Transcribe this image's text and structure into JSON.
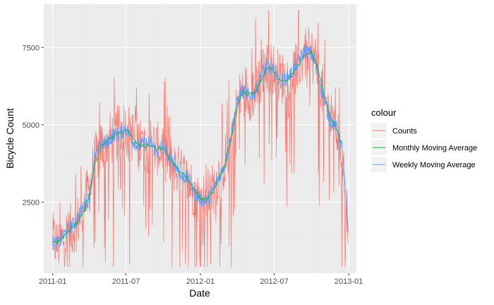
{
  "chart_data": {
    "type": "line",
    "xlabel": "Date",
    "ylabel": "Bicycle Count",
    "x_range": [
      "2010-12-10",
      "2013-01-20"
    ],
    "y_range": [
      200,
      8900
    ],
    "x_ticks": [
      {
        "label": "2011-01",
        "value": "2011-01-01"
      },
      {
        "label": "2011-07",
        "value": "2011-07-01"
      },
      {
        "label": "2012-01",
        "value": "2012-01-01"
      },
      {
        "label": "2012-07",
        "value": "2012-07-01"
      },
      {
        "label": "2013-01",
        "value": "2013-01-01"
      }
    ],
    "y_ticks": [
      2500,
      5000,
      7500
    ],
    "grid": true,
    "legend": {
      "title": "colour",
      "placement": "right",
      "entries": [
        {
          "label": "Counts",
          "color": "#F8766D"
        },
        {
          "label": "Monthly Moving Average",
          "color": "#00BA38"
        },
        {
          "label": "Weekly Moving Average",
          "color": "#619CFF"
        }
      ]
    },
    "series": [
      {
        "name": "Counts",
        "color": "#F8766D",
        "note_x": "semi-monthly samples of the daily count trend (envelope of daily values)",
        "x": [
          "2011-01-01",
          "2011-01-15",
          "2011-02-01",
          "2011-02-15",
          "2011-03-01",
          "2011-03-15",
          "2011-04-01",
          "2011-04-15",
          "2011-05-01",
          "2011-05-15",
          "2011-06-01",
          "2011-06-15",
          "2011-07-01",
          "2011-07-15",
          "2011-08-01",
          "2011-08-15",
          "2011-09-01",
          "2011-09-15",
          "2011-10-01",
          "2011-10-15",
          "2011-11-01",
          "2011-11-15",
          "2011-12-01",
          "2011-12-15",
          "2012-01-01",
          "2012-01-15",
          "2012-02-01",
          "2012-02-15",
          "2012-03-01",
          "2012-03-15",
          "2012-04-01",
          "2012-04-15",
          "2012-05-01",
          "2012-05-15",
          "2012-06-01",
          "2012-06-15",
          "2012-07-01",
          "2012-07-15",
          "2012-08-01",
          "2012-08-15",
          "2012-09-01",
          "2012-09-15",
          "2012-10-01",
          "2012-10-15",
          "2012-11-01",
          "2012-11-15",
          "2012-12-01",
          "2012-12-15",
          "2012-12-31"
        ],
        "y": [
          1300,
          1100,
          1400,
          1600,
          1800,
          2200,
          2900,
          3800,
          4300,
          4500,
          4600,
          4800,
          4900,
          4700,
          4400,
          4300,
          4400,
          4200,
          4300,
          3900,
          3600,
          3400,
          3200,
          2900,
          2500,
          2700,
          2900,
          3400,
          3800,
          4500,
          5600,
          6200,
          6000,
          6100,
          6600,
          6900,
          6800,
          6500,
          6500,
          6700,
          7000,
          7300,
          7300,
          6900,
          5900,
          5300,
          4900,
          4200,
          1800
        ]
      },
      {
        "name": "Monthly Moving Average",
        "color": "#00BA38",
        "x": [
          "2011-01-01",
          "2011-01-15",
          "2011-02-01",
          "2011-02-15",
          "2011-03-01",
          "2011-03-15",
          "2011-04-01",
          "2011-04-15",
          "2011-05-01",
          "2011-05-15",
          "2011-06-01",
          "2011-06-15",
          "2011-07-01",
          "2011-07-15",
          "2011-08-01",
          "2011-08-15",
          "2011-09-01",
          "2011-09-15",
          "2011-10-01",
          "2011-10-15",
          "2011-11-01",
          "2011-11-15",
          "2011-12-01",
          "2011-12-15",
          "2012-01-01",
          "2012-01-15",
          "2012-02-01",
          "2012-02-15",
          "2012-03-01",
          "2012-03-15",
          "2012-04-01",
          "2012-04-15",
          "2012-05-01",
          "2012-05-15",
          "2012-06-01",
          "2012-06-15",
          "2012-07-01",
          "2012-07-15",
          "2012-08-01",
          "2012-08-15",
          "2012-09-01",
          "2012-09-15",
          "2012-10-01",
          "2012-10-15",
          "2012-11-01",
          "2012-11-15",
          "2012-12-01",
          "2012-12-15"
        ],
        "y": [
          1250,
          1200,
          1450,
          1650,
          1800,
          2100,
          2700,
          3700,
          4300,
          4500,
          4600,
          4750,
          4850,
          4600,
          4350,
          4300,
          4350,
          4200,
          4250,
          3950,
          3650,
          3450,
          3250,
          2900,
          2600,
          2600,
          2800,
          3200,
          3700,
          4400,
          5600,
          6050,
          6000,
          6050,
          6500,
          6850,
          6750,
          6450,
          6450,
          6650,
          6950,
          7250,
          7350,
          6900,
          6000,
          5300,
          4900,
          4400
        ]
      },
      {
        "name": "Weekly Moving Average",
        "color": "#619CFF",
        "x": [
          "2011-01-01",
          "2011-01-15",
          "2011-02-01",
          "2011-02-15",
          "2011-03-01",
          "2011-03-15",
          "2011-04-01",
          "2011-04-15",
          "2011-05-01",
          "2011-05-15",
          "2011-06-01",
          "2011-06-15",
          "2011-07-01",
          "2011-07-15",
          "2011-08-01",
          "2011-08-15",
          "2011-09-01",
          "2011-09-15",
          "2011-10-01",
          "2011-10-15",
          "2011-11-01",
          "2011-11-15",
          "2011-12-01",
          "2011-12-15",
          "2012-01-01",
          "2012-01-15",
          "2012-02-01",
          "2012-02-15",
          "2012-03-01",
          "2012-03-15",
          "2012-04-01",
          "2012-04-15",
          "2012-05-01",
          "2012-05-15",
          "2012-06-01",
          "2012-06-15",
          "2012-07-01",
          "2012-07-15",
          "2012-08-01",
          "2012-08-15",
          "2012-09-01",
          "2012-09-15",
          "2012-10-01",
          "2012-10-15",
          "2012-11-01",
          "2012-11-15",
          "2012-12-01",
          "2012-12-15",
          "2012-12-31"
        ],
        "y": [
          1200,
          1150,
          1500,
          1700,
          1900,
          2300,
          2600,
          3900,
          4400,
          4400,
          4700,
          4700,
          4900,
          4550,
          4300,
          4400,
          4400,
          4100,
          4300,
          3900,
          3700,
          3300,
          3300,
          2800,
          2600,
          2500,
          2900,
          3300,
          3700,
          4600,
          5800,
          6100,
          5900,
          6100,
          6700,
          6900,
          6700,
          6400,
          6500,
          6700,
          7100,
          7400,
          7300,
          6800,
          5800,
          5200,
          4900,
          4300,
          1500
        ]
      }
    ]
  }
}
